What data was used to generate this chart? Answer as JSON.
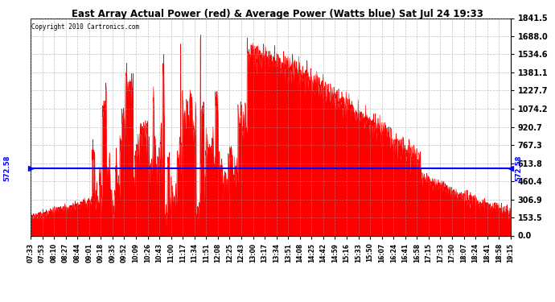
{
  "title": "East Array Actual Power (red) & Average Power (Watts blue) Sat Jul 24 19:33",
  "copyright": "Copyright 2010 Cartronics.com",
  "ymax": 1841.5,
  "ymin": 0.0,
  "yticks": [
    0.0,
    153.5,
    306.9,
    460.4,
    613.8,
    767.3,
    920.7,
    1074.2,
    1227.7,
    1381.1,
    1534.6,
    1688.0,
    1841.5
  ],
  "average_power": 572.58,
  "avg_label": "572.58",
  "xtick_labels": [
    "07:33",
    "07:53",
    "08:10",
    "08:27",
    "08:44",
    "09:01",
    "09:18",
    "09:35",
    "09:52",
    "10:09",
    "10:26",
    "10:43",
    "11:00",
    "11:17",
    "11:34",
    "11:51",
    "12:08",
    "12:25",
    "12:43",
    "13:00",
    "13:17",
    "13:34",
    "13:51",
    "14:08",
    "14:25",
    "14:42",
    "14:59",
    "15:16",
    "15:33",
    "15:50",
    "16:07",
    "16:24",
    "16:41",
    "16:58",
    "17:15",
    "17:33",
    "17:50",
    "18:07",
    "18:24",
    "18:41",
    "18:58",
    "19:15"
  ],
  "bg_color": "#ffffff",
  "red_color": "#ff0000",
  "blue_color": "#0000ff",
  "grid_color": "#999999"
}
